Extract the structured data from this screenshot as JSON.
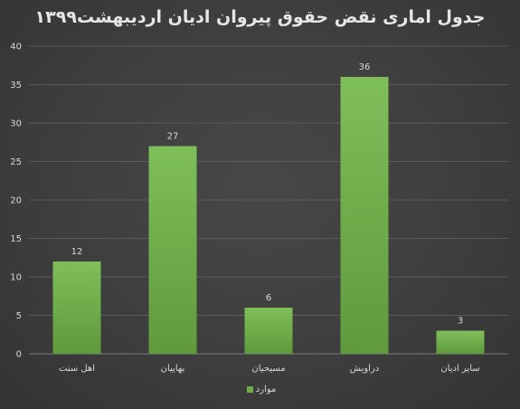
{
  "chart_data": {
    "type": "bar",
    "title": "جدول اماری نقض حقوق پیروان ادیان اردیبهشت۱۳۹۹",
    "categories": [
      "اهل سنت",
      "بهاییان",
      "مسیحیان",
      "دراویش",
      "سایر ادیان"
    ],
    "series": [
      {
        "name": "موارد",
        "values": [
          12,
          27,
          6,
          36,
          3
        ],
        "color": "#70ad47"
      }
    ],
    "ylim": [
      0,
      40
    ],
    "yticks": [
      0,
      5,
      10,
      15,
      20,
      25,
      30,
      35,
      40
    ],
    "grid": true,
    "data_labels": true,
    "legend_position": "bottom"
  }
}
